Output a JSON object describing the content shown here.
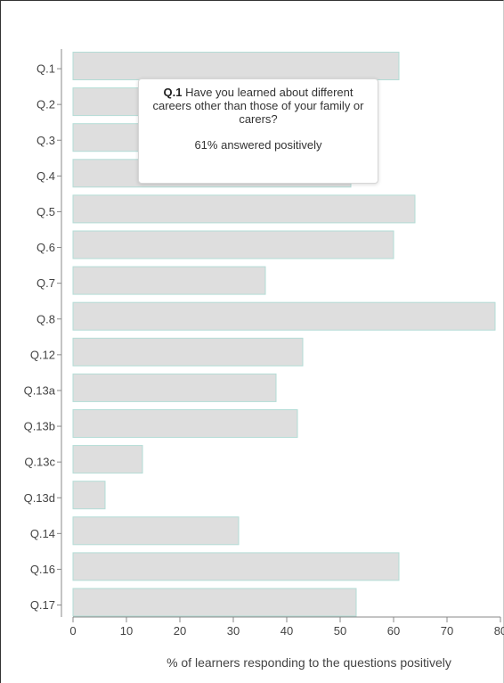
{
  "chart_data": {
    "type": "bar",
    "orientation": "horizontal",
    "categories": [
      "Q.1",
      "Q.2",
      "Q.3",
      "Q.4",
      "Q.5",
      "Q.6",
      "Q.7",
      "Q.8",
      "Q.12",
      "Q.13a",
      "Q.13b",
      "Q.13c",
      "Q.13d",
      "Q.14",
      "Q.16",
      "Q.17"
    ],
    "values": [
      61,
      45,
      44,
      52,
      64,
      60,
      36,
      79,
      43,
      38,
      42,
      13,
      6,
      31,
      61,
      53
    ],
    "xlabel": "% of learners responding to the questions positively",
    "ylabel": "",
    "xlim": [
      0,
      80
    ],
    "xticks": [
      "0",
      "10",
      "20",
      "30",
      "40",
      "50",
      "60",
      "70",
      "80"
    ],
    "grid": false,
    "bar_color": "#dedede",
    "bar_edge_color": "#b3dcd6"
  },
  "tooltip": {
    "question_id": "Q.1",
    "question_text": " Have you learned about different careers other than those of your family or carers?",
    "stat_text": "61% answered positively"
  }
}
